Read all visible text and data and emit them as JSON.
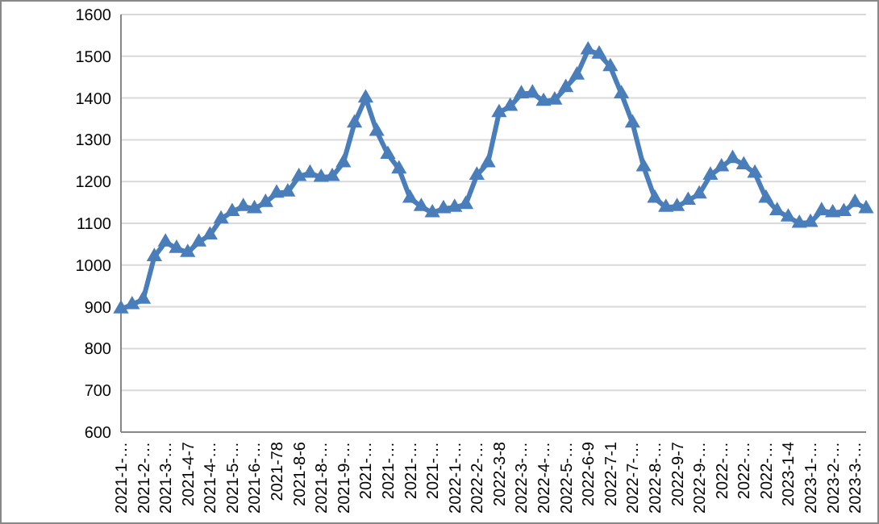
{
  "chart_data": {
    "type": "line",
    "categories": [
      "2021-1-…",
      null,
      "2021-2-…",
      null,
      "2021-3-…",
      null,
      "2021-4-7",
      null,
      "2021-4-…",
      null,
      "2021-5-…",
      null,
      "2021-6-…",
      null,
      "2021-78",
      null,
      "2021-8-6",
      null,
      "2021-8-…",
      null,
      "2021-9-…",
      null,
      "2021-…",
      null,
      "2021-…",
      null,
      "2021-…",
      null,
      "2021-…",
      null,
      "2022-1-…",
      null,
      "2022-2-…",
      null,
      "2022-3-8",
      null,
      "2022-3-…",
      null,
      "2022-4-…",
      null,
      "2022-5-…",
      null,
      "2022-6-9",
      null,
      "2022-7-1",
      null,
      "2022-7-…",
      null,
      "2022-8-…",
      null,
      "2022-9-7",
      null,
      "2022-9-…",
      null,
      "2022-…",
      null,
      "2022-…",
      null,
      "2022-…",
      null,
      "2023-1-4",
      null,
      "2023-1-…",
      null,
      "2023-2-…",
      null,
      "2023-3-…",
      null
    ],
    "series": [
      {
        "color": "#4a7ebb",
        "values": [
          895,
          905,
          918,
          1020,
          1055,
          1040,
          1030,
          1055,
          1072,
          1110,
          1128,
          1140,
          1135,
          1150,
          1172,
          1175,
          1212,
          1220,
          1210,
          1212,
          1245,
          1340,
          1400,
          1320,
          1265,
          1230,
          1160,
          1140,
          1125,
          1135,
          1138,
          1145,
          1215,
          1245,
          1365,
          1380,
          1410,
          1412,
          1392,
          1395,
          1425,
          1455,
          1515,
          1505,
          1475,
          1410,
          1340,
          1235,
          1160,
          1138,
          1140,
          1155,
          1170,
          1215,
          1235,
          1255,
          1240,
          1220,
          1160,
          1130,
          1115,
          1100,
          1102,
          1130,
          1125,
          1128,
          1150,
          1135
        ]
      }
    ],
    "ylim": [
      600,
      1600
    ],
    "yticks": [
      600,
      700,
      800,
      900,
      1000,
      1100,
      1200,
      1300,
      1400,
      1500,
      1600
    ],
    "grid": "y",
    "marker": "triangle"
  }
}
